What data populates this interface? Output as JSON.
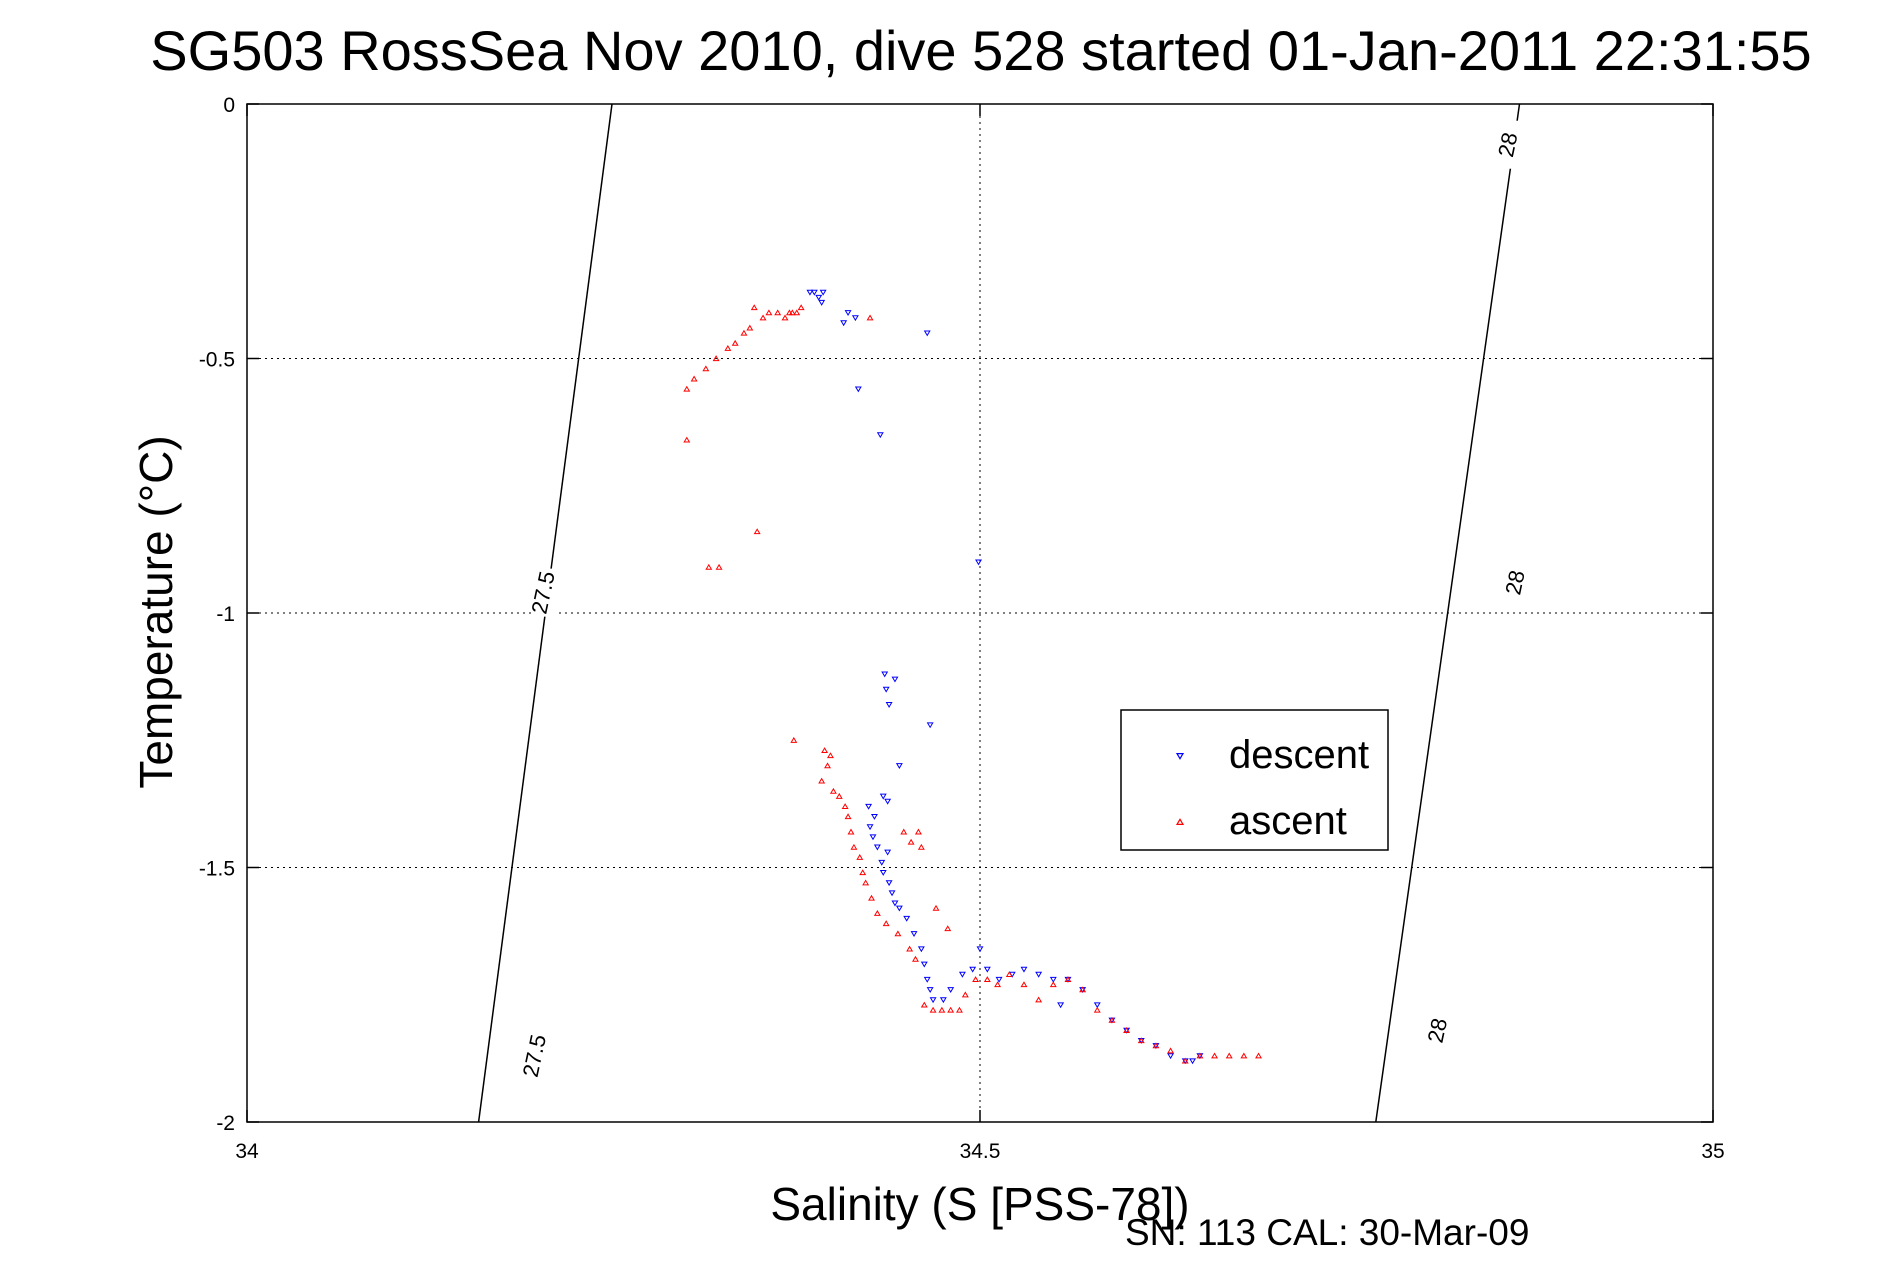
{
  "chart_data": {
    "type": "scatter",
    "title": "SG503 RossSea Nov 2010, dive 528 started 01-Jan-2011 22:31:55",
    "xlabel": "Salinity (S [PSS-78])",
    "ylabel": "Temperature (°C)",
    "xlim": [
      34,
      35
    ],
    "ylim": [
      -2,
      0
    ],
    "x_ticks": [
      "34",
      "34.5",
      "35"
    ],
    "y_ticks": [
      "0",
      "-0.5",
      "-1",
      "-1.5",
      "-2"
    ],
    "grid": true,
    "legend_position": "right",
    "footer": "SN: 113  CAL: 30-Mar-09",
    "contours": [
      {
        "level": "27.5",
        "points": [
          [
            34.158,
            -2.0
          ],
          [
            34.249,
            0.0
          ]
        ],
        "labels": [
          [
            34.196,
            -1.87
          ],
          [
            34.202,
            -0.96
          ]
        ]
      },
      {
        "level": "28",
        "points": [
          [
            34.77,
            -2.0
          ],
          [
            34.868,
            0.0
          ]
        ],
        "labels": [
          [
            34.812,
            -1.82
          ],
          [
            34.865,
            -0.94
          ],
          [
            34.86,
            -0.08
          ]
        ]
      }
    ],
    "series": [
      {
        "name": "descent",
        "color": "#0000ff",
        "marker": "triangle-down",
        "points": [
          [
            34.384,
            -0.37
          ],
          [
            34.387,
            -0.37
          ],
          [
            34.39,
            -0.38
          ],
          [
            34.393,
            -0.37
          ],
          [
            34.392,
            -0.39
          ],
          [
            34.41,
            -0.41
          ],
          [
            34.415,
            -0.42
          ],
          [
            34.407,
            -0.43
          ],
          [
            34.464,
            -0.45
          ],
          [
            34.417,
            -0.56
          ],
          [
            34.432,
            -0.65
          ],
          [
            34.499,
            -0.9
          ],
          [
            34.435,
            -1.12
          ],
          [
            34.436,
            -1.15
          ],
          [
            34.442,
            -1.13
          ],
          [
            34.438,
            -1.18
          ],
          [
            34.466,
            -1.22
          ],
          [
            34.445,
            -1.3
          ],
          [
            34.434,
            -1.36
          ],
          [
            34.437,
            -1.37
          ],
          [
            34.424,
            -1.38
          ],
          [
            34.428,
            -1.4
          ],
          [
            34.425,
            -1.42
          ],
          [
            34.427,
            -1.44
          ],
          [
            34.43,
            -1.46
          ],
          [
            34.437,
            -1.47
          ],
          [
            34.433,
            -1.49
          ],
          [
            34.434,
            -1.51
          ],
          [
            34.438,
            -1.53
          ],
          [
            34.44,
            -1.55
          ],
          [
            34.442,
            -1.57
          ],
          [
            34.445,
            -1.58
          ],
          [
            34.45,
            -1.6
          ],
          [
            34.455,
            -1.63
          ],
          [
            34.46,
            -1.66
          ],
          [
            34.462,
            -1.69
          ],
          [
            34.464,
            -1.72
          ],
          [
            34.466,
            -1.74
          ],
          [
            34.468,
            -1.76
          ],
          [
            34.475,
            -1.76
          ],
          [
            34.48,
            -1.74
          ],
          [
            34.488,
            -1.71
          ],
          [
            34.495,
            -1.7
          ],
          [
            34.5,
            -1.66
          ],
          [
            34.505,
            -1.7
          ],
          [
            34.513,
            -1.72
          ],
          [
            34.522,
            -1.71
          ],
          [
            34.53,
            -1.7
          ],
          [
            34.54,
            -1.71
          ],
          [
            34.55,
            -1.72
          ],
          [
            34.555,
            -1.77
          ],
          [
            34.56,
            -1.72
          ],
          [
            34.57,
            -1.74
          ],
          [
            34.58,
            -1.77
          ],
          [
            34.59,
            -1.8
          ],
          [
            34.6,
            -1.82
          ],
          [
            34.61,
            -1.84
          ],
          [
            34.62,
            -1.85
          ],
          [
            34.63,
            -1.87
          ],
          [
            34.64,
            -1.88
          ],
          [
            34.645,
            -1.88
          ],
          [
            34.65,
            -1.87
          ]
        ]
      },
      {
        "name": "ascent",
        "color": "#ff0000",
        "marker": "triangle-up",
        "points": [
          [
            34.425,
            -0.42
          ],
          [
            34.378,
            -0.4
          ],
          [
            34.375,
            -0.41
          ],
          [
            34.372,
            -0.41
          ],
          [
            34.37,
            -0.41
          ],
          [
            34.367,
            -0.42
          ],
          [
            34.362,
            -0.41
          ],
          [
            34.356,
            -0.41
          ],
          [
            34.352,
            -0.42
          ],
          [
            34.346,
            -0.4
          ],
          [
            34.343,
            -0.44
          ],
          [
            34.339,
            -0.45
          ],
          [
            34.333,
            -0.47
          ],
          [
            34.328,
            -0.48
          ],
          [
            34.32,
            -0.5
          ],
          [
            34.313,
            -0.52
          ],
          [
            34.305,
            -0.54
          ],
          [
            34.3,
            -0.56
          ],
          [
            34.3,
            -0.66
          ],
          [
            34.315,
            -0.91
          ],
          [
            34.322,
            -0.91
          ],
          [
            34.348,
            -0.84
          ],
          [
            34.373,
            -1.25
          ],
          [
            34.394,
            -1.27
          ],
          [
            34.398,
            -1.28
          ],
          [
            34.396,
            -1.3
          ],
          [
            34.392,
            -1.33
          ],
          [
            34.4,
            -1.35
          ],
          [
            34.404,
            -1.36
          ],
          [
            34.408,
            -1.38
          ],
          [
            34.41,
            -1.4
          ],
          [
            34.412,
            -1.43
          ],
          [
            34.414,
            -1.46
          ],
          [
            34.418,
            -1.48
          ],
          [
            34.42,
            -1.51
          ],
          [
            34.422,
            -1.53
          ],
          [
            34.426,
            -1.56
          ],
          [
            34.43,
            -1.59
          ],
          [
            34.436,
            -1.61
          ],
          [
            34.444,
            -1.63
          ],
          [
            34.452,
            -1.66
          ],
          [
            34.456,
            -1.68
          ],
          [
            34.448,
            -1.43
          ],
          [
            34.453,
            -1.45
          ],
          [
            34.458,
            -1.43
          ],
          [
            34.46,
            -1.46
          ],
          [
            34.47,
            -1.58
          ],
          [
            34.478,
            -1.62
          ],
          [
            34.462,
            -1.77
          ],
          [
            34.468,
            -1.78
          ],
          [
            34.474,
            -1.78
          ],
          [
            34.48,
            -1.78
          ],
          [
            34.486,
            -1.78
          ],
          [
            34.49,
            -1.75
          ],
          [
            34.497,
            -1.72
          ],
          [
            34.505,
            -1.72
          ],
          [
            34.512,
            -1.73
          ],
          [
            34.52,
            -1.71
          ],
          [
            34.53,
            -1.73
          ],
          [
            34.54,
            -1.76
          ],
          [
            34.55,
            -1.73
          ],
          [
            34.56,
            -1.72
          ],
          [
            34.57,
            -1.74
          ],
          [
            34.58,
            -1.78
          ],
          [
            34.59,
            -1.8
          ],
          [
            34.6,
            -1.82
          ],
          [
            34.61,
            -1.84
          ],
          [
            34.62,
            -1.85
          ],
          [
            34.63,
            -1.86
          ],
          [
            34.64,
            -1.88
          ],
          [
            34.65,
            -1.87
          ],
          [
            34.66,
            -1.87
          ],
          [
            34.67,
            -1.87
          ],
          [
            34.68,
            -1.87
          ],
          [
            34.69,
            -1.87
          ]
        ]
      }
    ]
  }
}
